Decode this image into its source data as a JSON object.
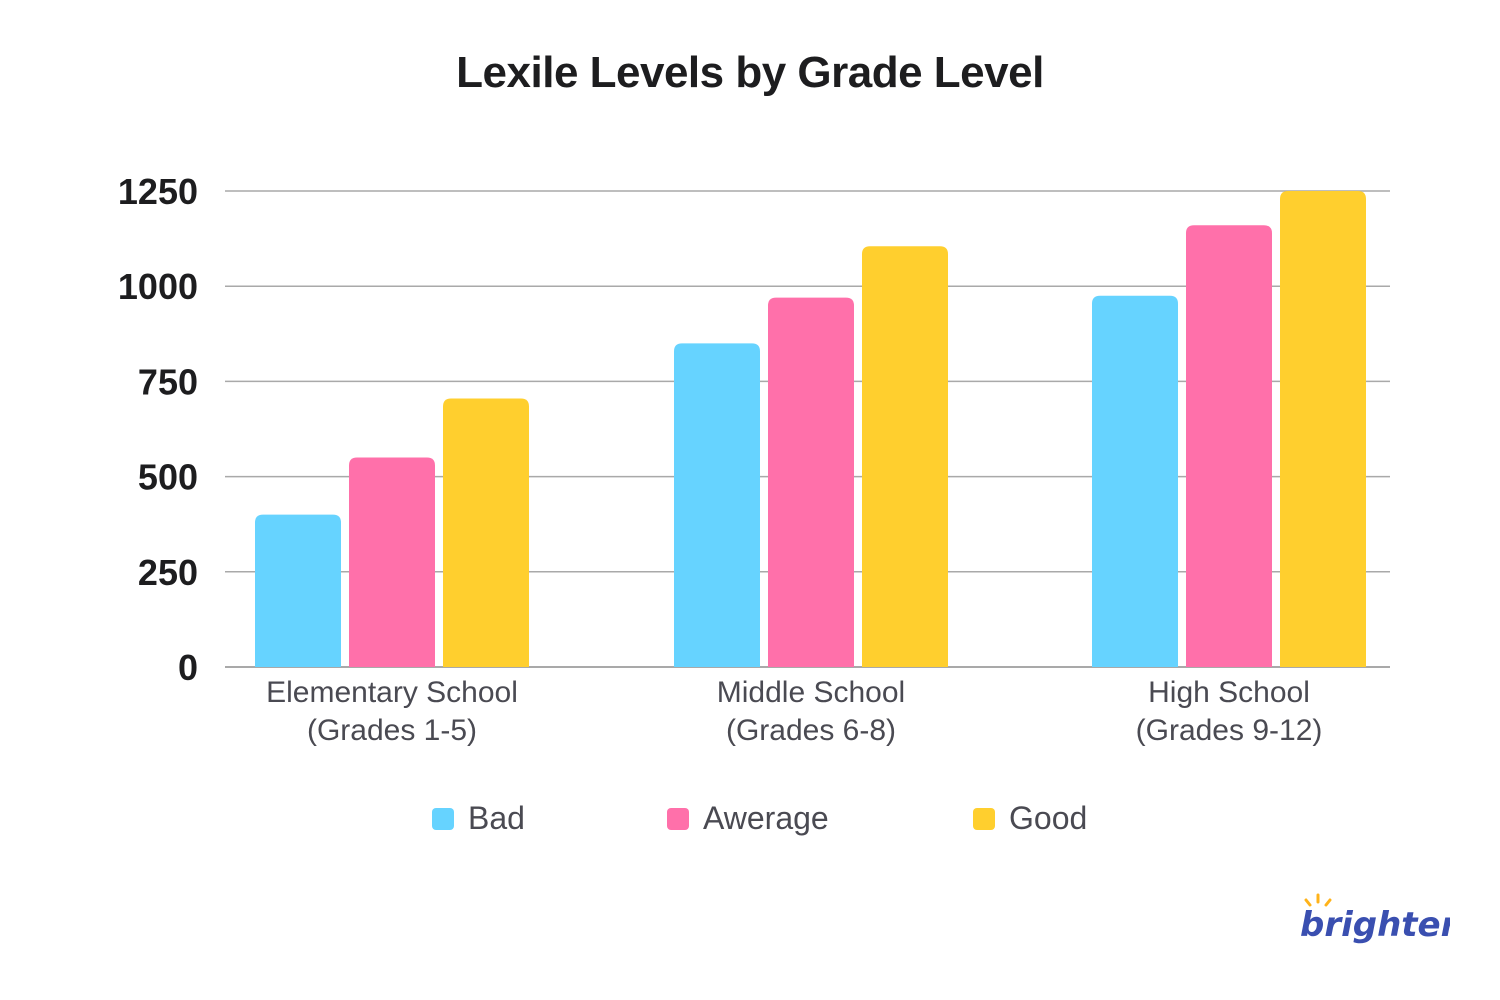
{
  "chart_data": {
    "type": "bar",
    "title": "Lexile Levels by Grade Level",
    "categories": [
      "Elementary School|(Grades 1-5)",
      "Middle School|(Grades 6-8)",
      "High School|(Grades 9-12)"
    ],
    "series": [
      {
        "name": "Bad",
        "values": [
          400,
          850,
          975
        ],
        "color": "#66d3ff"
      },
      {
        "name": "Awerage",
        "values": [
          550,
          970,
          1160
        ],
        "color": "#ff70aa"
      },
      {
        "name": "Good",
        "values": [
          705,
          1105,
          1250
        ],
        "color": "#ffcf2e"
      }
    ],
    "yticks": [
      "0",
      "250",
      "500",
      "750",
      "1000",
      "1250"
    ],
    "ylim": [
      0,
      1250
    ],
    "grid": true,
    "legend_position": "bottom"
  },
  "brand": {
    "name": "Brighterly",
    "text": "brighterly"
  },
  "colors": {
    "grid": "#a9a9a9",
    "title": "#1d1d1f",
    "brand": "#3a4fb0",
    "sun": "#ffb31a"
  }
}
